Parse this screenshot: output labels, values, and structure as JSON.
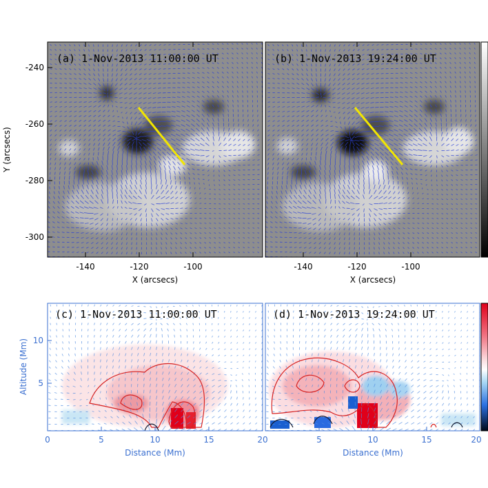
{
  "panels": {
    "a": {
      "title": "(a) 1-Nov-2013 11:00:00 UT"
    },
    "b": {
      "title": "(b) 1-Nov-2013 19:24:00 UT"
    },
    "c": {
      "title": "(c) 1-Nov-2013 11:00:00 UT"
    },
    "d": {
      "title": "(d) 1-Nov-2013 19:24:00 UT"
    }
  },
  "top_axes": {
    "xlabel": "X (arcsecs)",
    "ylabel": "Y (arcsecs)",
    "xticks": [
      "-140",
      "-120",
      "-100"
    ],
    "yticks": [
      "-240",
      "-260",
      "-280",
      "-300"
    ]
  },
  "bottom_axes": {
    "xlabel": "Distance (Mm)",
    "ylabel": "Altitude (Mm)",
    "xticks_c": [
      "0",
      "5",
      "10",
      "15",
      "20"
    ],
    "xticks_d": [
      "5",
      "10",
      "15",
      "20"
    ],
    "yticks": [
      "10",
      "5"
    ]
  },
  "colors": {
    "vector": "#2a3fd6",
    "yellow": "#f2e600",
    "contour_red": "#d62020",
    "contour_dark": "#101830",
    "axis_blue": "#3a6fd0"
  }
}
